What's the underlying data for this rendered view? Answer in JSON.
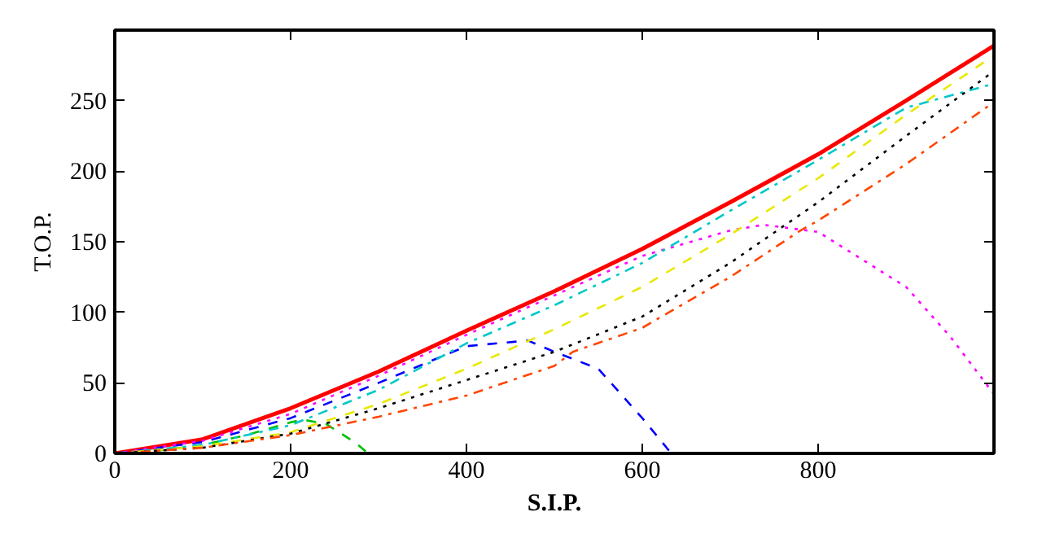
{
  "chart_data": {
    "type": "line",
    "xlabel": "S.I.P.",
    "ylabel": "T.O.P.",
    "xlim": [
      0,
      1000
    ],
    "ylim": [
      0,
      300
    ],
    "xticks": [
      0,
      200,
      400,
      600,
      800
    ],
    "yticks": [
      0,
      50,
      100,
      150,
      200,
      250
    ],
    "grid": false,
    "marker": "none",
    "series": [
      {
        "color": "#ff0000",
        "line_style": "solid",
        "x": [
          0,
          100,
          200,
          300,
          400,
          500,
          600,
          700,
          800,
          900,
          1000
        ],
        "values": [
          0,
          10,
          32,
          58,
          87,
          115,
          145,
          178,
          212,
          250,
          289
        ]
      },
      {
        "color": "#00c000",
        "line_style": "dashed",
        "x": [
          0,
          50,
          100,
          150,
          200,
          213,
          240,
          260,
          275,
          288
        ],
        "values": [
          0,
          2,
          6,
          13,
          22,
          24,
          21,
          13,
          7,
          0
        ]
      },
      {
        "color": "#0000ff",
        "line_style": "dashed",
        "x": [
          0,
          100,
          200,
          300,
          400,
          470,
          500,
          550,
          600,
          633
        ],
        "values": [
          0,
          8,
          25,
          50,
          76,
          80,
          72,
          60,
          25,
          0
        ]
      },
      {
        "color": "#ff00ff",
        "line_style": "dotted",
        "x": [
          0,
          100,
          200,
          300,
          400,
          500,
          600,
          700,
          738,
          800,
          900,
          950,
          1000
        ],
        "values": [
          0,
          9,
          28,
          55,
          84,
          112,
          140,
          158,
          162,
          157,
          118,
          83,
          42
        ]
      },
      {
        "color": "#00c8c8",
        "line_style": "dashdot",
        "x": [
          0,
          100,
          200,
          300,
          400,
          500,
          600,
          700,
          800,
          900,
          1000
        ],
        "values": [
          0,
          6,
          20,
          45,
          78,
          105,
          135,
          172,
          208,
          245,
          262
        ]
      },
      {
        "color": "#e8e800",
        "line_style": "dashed",
        "x": [
          0,
          100,
          200,
          300,
          400,
          500,
          600,
          700,
          800,
          900,
          1000
        ],
        "values": [
          0,
          5,
          15,
          35,
          60,
          88,
          118,
          155,
          195,
          240,
          282
        ]
      },
      {
        "color": "#000000",
        "line_style": "dotted",
        "x": [
          0,
          100,
          200,
          300,
          400,
          500,
          600,
          700,
          800,
          900,
          1000
        ],
        "values": [
          0,
          4,
          14,
          32,
          52,
          72,
          97,
          135,
          178,
          225,
          271
        ]
      },
      {
        "color": "#ff4500",
        "line_style": "dashdot",
        "x": [
          0,
          100,
          200,
          300,
          400,
          500,
          521,
          600,
          700,
          780,
          800,
          900,
          1000
        ],
        "values": [
          0,
          4,
          13,
          26,
          41,
          62,
          72,
          89,
          125,
          158,
          165,
          205,
          249
        ]
      }
    ]
  }
}
